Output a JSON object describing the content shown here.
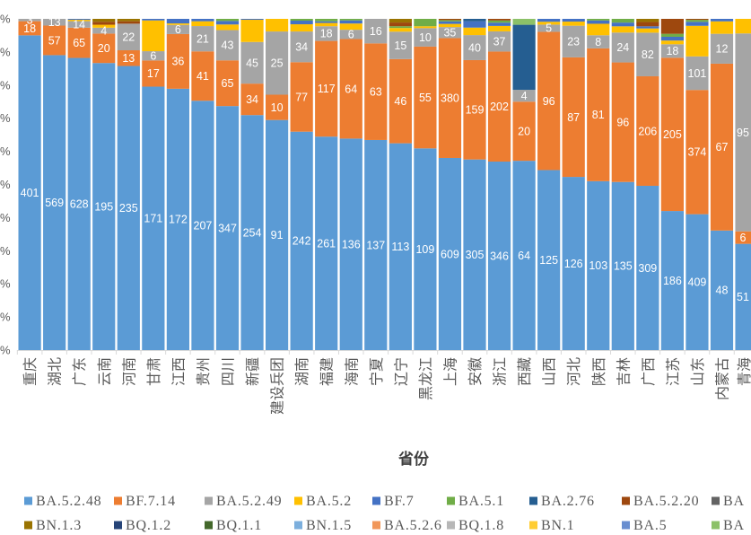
{
  "chart_data": {
    "type": "bar",
    "stacked": "percent",
    "categories": [
      "重庆",
      "湖北",
      "广东",
      "云南",
      "河南",
      "甘肃",
      "江西",
      "贵州",
      "四川",
      "新疆",
      "建设兵团",
      "湖南",
      "福建",
      "海南",
      "宁夏",
      "辽宁",
      "黑龙江",
      "上海",
      "安徽",
      "浙江",
      "西藏",
      "山西",
      "河北",
      "陕西",
      "吉林",
      "广西",
      "江苏",
      "山东",
      "内蒙古",
      "青海"
    ],
    "xlabel": "省份",
    "ylim": [
      0,
      100
    ],
    "y_tick_labels": [
      "%",
      "%",
      "%",
      "%",
      "%",
      "%",
      "%",
      "%",
      "%",
      "%",
      "%"
    ],
    "legend": "bottom",
    "series": [
      {
        "name": "BA.5.2.48",
        "color": "#5B9BD5",
        "data_labels": true,
        "values": [
          401,
          569,
          628,
          195,
          235,
          171,
          172,
          207,
          347,
          254,
          91,
          242,
          261,
          136,
          137,
          113,
          109,
          609,
          305,
          346,
          64,
          125,
          126,
          103,
          135,
          309,
          186,
          409,
          48,
          51
        ]
      },
      {
        "name": "BF.7.14",
        "color": "#ED7D31",
        "data_labels": true,
        "values": [
          18,
          57,
          65,
          20,
          13,
          17,
          36,
          41,
          65,
          34,
          10,
          77,
          117,
          64,
          63,
          46,
          55,
          380,
          159,
          202,
          20,
          96,
          87,
          81,
          96,
          206,
          205,
          374,
          67,
          6
        ]
      },
      {
        "name": "BA.5.2.49",
        "color": "#A5A5A5",
        "data_labels": true,
        "values": [
          3,
          13,
          14,
          4,
          22,
          6,
          6,
          21,
          43,
          45,
          25,
          34,
          18,
          6,
          16,
          15,
          10,
          35,
          40,
          37,
          4,
          5,
          23,
          8,
          24,
          82,
          18,
          101,
          12,
          95
        ]
      },
      {
        "name": "BA.5.2",
        "color": "#FFC000",
        "data_labels": false,
        "values": [
          0,
          0,
          3,
          2,
          0,
          20,
          1,
          4,
          8,
          24,
          5,
          8,
          4,
          4,
          0,
          2,
          1,
          10,
          12,
          10,
          0,
          2,
          3,
          7,
          5,
          8,
          5,
          92,
          5,
          7
        ]
      },
      {
        "name": "BF.7",
        "color": "#4472C4",
        "data_labels": false,
        "values": [
          0,
          0,
          2,
          0,
          0,
          1,
          3,
          2,
          5,
          1,
          0,
          4,
          2,
          2,
          0,
          0,
          0,
          8,
          10,
          6,
          0,
          2,
          2,
          2,
          3,
          4,
          5,
          12,
          1,
          0
        ]
      },
      {
        "name": "BA.5.1",
        "color": "#70AD47",
        "data_labels": false,
        "values": [
          0,
          0,
          0,
          0,
          0,
          0,
          0,
          0,
          3,
          0,
          0,
          2,
          3,
          1,
          0,
          1,
          4,
          4,
          0,
          4,
          0,
          0,
          0,
          1,
          3,
          0,
          4,
          6,
          0,
          0
        ]
      },
      {
        "name": "BA.2.76",
        "color": "#255E91",
        "data_labels": false,
        "values": [
          0,
          0,
          0,
          0,
          0,
          0,
          0,
          0,
          0,
          0,
          0,
          0,
          0,
          0,
          0,
          0,
          0,
          0,
          4,
          0,
          22,
          0,
          0,
          0,
          0,
          0,
          0,
          0,
          0,
          0
        ]
      },
      {
        "name": "BA.5.2.20",
        "color": "#9E480E",
        "data_labels": false,
        "values": [
          0,
          0,
          0,
          2,
          2,
          0,
          0,
          0,
          0,
          0,
          0,
          0,
          0,
          0,
          0,
          2,
          0,
          4,
          0,
          3,
          0,
          0,
          0,
          0,
          0,
          8,
          20,
          3,
          0,
          0
        ]
      },
      {
        "name": "BA",
        "color": "#636363",
        "data_labels": false,
        "values": [
          0,
          0,
          0,
          0,
          0,
          0,
          0,
          0,
          0,
          0,
          0,
          0,
          0,
          0,
          0,
          0,
          0,
          0,
          0,
          0,
          0,
          0,
          0,
          0,
          0,
          0,
          0,
          0,
          0,
          0
        ]
      },
      {
        "name": "BN.1.3",
        "color": "#997300",
        "data_labels": false,
        "values": [
          0,
          0,
          0,
          2,
          2,
          0,
          0,
          0,
          0,
          0,
          0,
          0,
          0,
          0,
          0,
          2,
          0,
          0,
          0,
          0,
          0,
          0,
          0,
          0,
          0,
          6,
          0,
          0,
          0,
          0
        ]
      },
      {
        "name": "BQ.1.2",
        "color": "#264478",
        "data_labels": false,
        "values": [
          0,
          0,
          0,
          0,
          0,
          0,
          0,
          0,
          0,
          0,
          0,
          0,
          0,
          0,
          0,
          0,
          0,
          0,
          0,
          0,
          0,
          0,
          0,
          0,
          0,
          0,
          0,
          0,
          0,
          0
        ]
      },
      {
        "name": "BQ.1.1",
        "color": "#43682B",
        "data_labels": false,
        "values": [
          0,
          0,
          0,
          0,
          0,
          0,
          0,
          0,
          0,
          0,
          0,
          0,
          0,
          0,
          0,
          0,
          0,
          0,
          0,
          0,
          0,
          0,
          0,
          0,
          0,
          0,
          0,
          0,
          0,
          0
        ]
      },
      {
        "name": "BN.1.5",
        "color": "#7CAFDD",
        "data_labels": false,
        "values": [
          0,
          0,
          0,
          0,
          0,
          0,
          0,
          0,
          0,
          0,
          0,
          0,
          0,
          0,
          0,
          0,
          0,
          0,
          0,
          0,
          0,
          0,
          0,
          0,
          0,
          0,
          0,
          0,
          0,
          0
        ]
      },
      {
        "name": "BA.5.2.6",
        "color": "#F1975A",
        "data_labels": false,
        "values": [
          0,
          0,
          0,
          0,
          0,
          0,
          0,
          0,
          0,
          0,
          0,
          0,
          0,
          0,
          0,
          0,
          0,
          0,
          0,
          0,
          0,
          0,
          0,
          0,
          0,
          0,
          0,
          0,
          0,
          0
        ]
      },
      {
        "name": "BQ.1.8",
        "color": "#B7B7B7",
        "data_labels": false,
        "values": [
          0,
          0,
          0,
          0,
          0,
          0,
          0,
          0,
          0,
          0,
          0,
          0,
          0,
          0,
          0,
          0,
          0,
          0,
          0,
          0,
          0,
          0,
          0,
          0,
          0,
          0,
          0,
          0,
          0,
          0
        ]
      },
      {
        "name": "BN.1",
        "color": "#FFCD33",
        "data_labels": false,
        "values": [
          0,
          0,
          0,
          0,
          0,
          0,
          0,
          0,
          0,
          0,
          0,
          0,
          0,
          0,
          0,
          0,
          0,
          0,
          0,
          0,
          0,
          0,
          0,
          0,
          0,
          0,
          0,
          0,
          0,
          0
        ]
      },
      {
        "name": "BA.5",
        "color": "#698ED0",
        "data_labels": false,
        "values": [
          0,
          0,
          0,
          0,
          0,
          0,
          0,
          0,
          0,
          0,
          0,
          0,
          0,
          0,
          0,
          0,
          0,
          0,
          0,
          0,
          0,
          0,
          0,
          0,
          0,
          0,
          0,
          0,
          0,
          0
        ]
      },
      {
        "name": "BA",
        "color": "#8CC168",
        "data_labels": false,
        "values": [
          0,
          0,
          0,
          0,
          0,
          0,
          0,
          0,
          0,
          0,
          0,
          0,
          0,
          0,
          0,
          0,
          0,
          0,
          0,
          0,
          2,
          0,
          0,
          0,
          0,
          0,
          0,
          0,
          0,
          0
        ]
      }
    ]
  }
}
